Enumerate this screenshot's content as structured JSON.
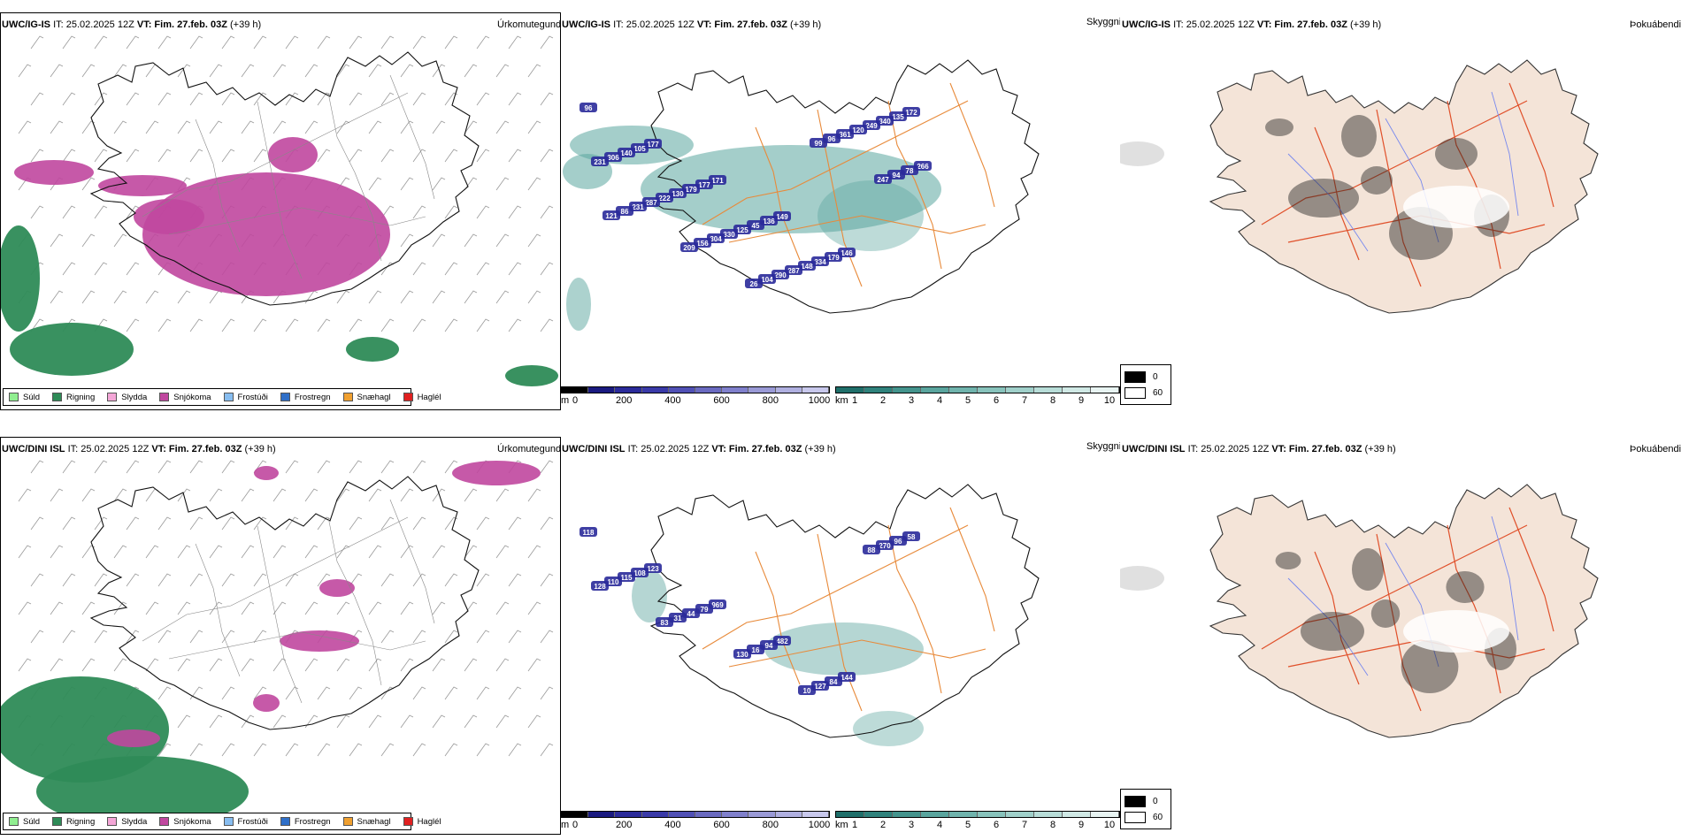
{
  "rows": [
    {
      "model": "UWC/IG-IS",
      "it_label": "IT: 25.02.2025 12Z",
      "vt_prefix": "VT:",
      "vt_value": "Fim. 27.feb. 03Z",
      "lead": "(+39 h)",
      "precip_title": "Úrkomutegund",
      "cloud_title": "Skyggni",
      "fog_title": "Þokuábendi"
    },
    {
      "model": "UWC/DINI ISL",
      "it_label": "IT: 25.02.2025 12Z",
      "vt_prefix": "VT:",
      "vt_value": "Fim. 27.feb. 03Z",
      "lead": "(+39 h)",
      "precip_title": "Úrkomutegund",
      "cloud_title": "Skyggni",
      "fog_title": "Þokuábendi"
    }
  ],
  "precip_legend": [
    {
      "label": "Súld",
      "color": "#90ee90"
    },
    {
      "label": "Rigning",
      "color": "#2e8b57"
    },
    {
      "label": "Slydda",
      "color": "#f4a6d7"
    },
    {
      "label": "Snjókoma",
      "color": "#c0479f"
    },
    {
      "label": "Frostúði",
      "color": "#87bdf0"
    },
    {
      "label": "Frostregn",
      "color": "#2f6fc8"
    },
    {
      "label": "Snæhagl",
      "color": "#f0a030"
    },
    {
      "label": "Haglél",
      "color": "#e02020"
    }
  ],
  "height_bar": {
    "unit": "m",
    "ticks": [
      "0",
      "200",
      "400",
      "600",
      "800",
      "1000"
    ],
    "colors": [
      "#000000",
      "#1a1a80",
      "#2b2b9a",
      "#3a3aa8",
      "#5050b5",
      "#6a6ac0",
      "#8080cc",
      "#9a9ad6",
      "#b0b0e0",
      "#c8c8ec"
    ]
  },
  "vis_bar": {
    "unit": "km",
    "ticks": [
      "1",
      "2",
      "3",
      "4",
      "5",
      "6",
      "7",
      "8",
      "9",
      "10"
    ],
    "colors": [
      "#1f6f6a",
      "#2f827c",
      "#44948d",
      "#5aa59e",
      "#70b4ad",
      "#88c3bc",
      "#a0d0ca",
      "#b8ddd8",
      "#d0e9e5",
      "#e8f4f2"
    ]
  },
  "fog_legend": [
    {
      "value": "0",
      "color": "#000000"
    },
    {
      "value": "60",
      "color": "#ffffff"
    }
  ],
  "cloud_labels_top": [
    "96",
    "177",
    "171",
    "149",
    "146",
    "172",
    "105",
    "177",
    "136",
    "179",
    "135",
    "140",
    "179",
    "45",
    "334",
    "340",
    "306",
    "130",
    "125",
    "148",
    "249",
    "231",
    "222",
    "330",
    "287",
    "120",
    "266",
    "287",
    "304",
    "290",
    "361",
    "78",
    "231",
    "156",
    "104",
    "96",
    "94",
    "86",
    "209",
    "26",
    "99",
    "247",
    "121"
  ],
  "cloud_labels_bottom": [
    "118",
    "123",
    "969",
    "482",
    "144",
    "58",
    "108",
    "79",
    "94",
    "84",
    "96",
    "115",
    "44",
    "16",
    "127",
    "270",
    "110",
    "31",
    "130",
    "10",
    "88",
    "128",
    "83"
  ],
  "colors": {
    "pink_snow": "#c0479f",
    "rain_green": "#2e8b57",
    "road_orange": "#e88a3a",
    "road_red": "#e0502a",
    "land_beige": "#f4e4d8",
    "river_blue": "#7788ee"
  }
}
